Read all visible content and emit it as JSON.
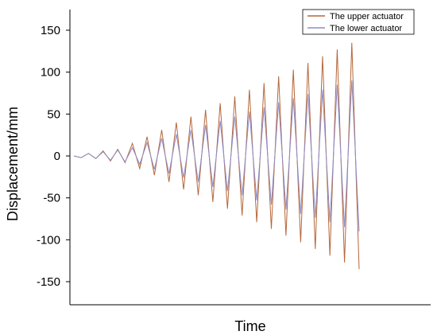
{
  "chart_data": {
    "type": "line",
    "title": "",
    "xlabel": "Time",
    "ylabel": "Displacement/mm",
    "ylim": [
      -180,
      180
    ],
    "yticks": [
      -150,
      -100,
      -50,
      0,
      50,
      100,
      150
    ],
    "xticks": [],
    "grid": false,
    "legend_position": "top-right",
    "colors": {
      "upper": "#b5673a",
      "lower": "#8e8cc8",
      "axis": "#000000"
    },
    "series": [
      {
        "name": "The upper actuator",
        "color_key": "upper",
        "values": [
          0,
          -2,
          3,
          -3,
          6,
          -6,
          8,
          -8,
          15,
          -15,
          23,
          -23,
          31,
          -31,
          40,
          -40,
          47,
          -47,
          55,
          -55,
          63,
          -63,
          71,
          -71,
          79,
          -79,
          87,
          -87,
          95,
          -95,
          103,
          -103,
          111,
          -111,
          119,
          -119,
          127,
          -127,
          135,
          -135
        ]
      },
      {
        "name": "The lower actuator",
        "color_key": "lower",
        "values": [
          0,
          -2,
          3,
          -3,
          5,
          -5,
          7,
          -7,
          10,
          -10,
          16,
          -16,
          21,
          -21,
          26,
          -26,
          31,
          -31,
          37,
          -37,
          42,
          -42,
          47,
          -47,
          53,
          -53,
          58,
          -58,
          64,
          -64,
          69,
          -69,
          74,
          -74,
          79,
          -79,
          85,
          -85,
          90,
          -90
        ]
      }
    ]
  }
}
